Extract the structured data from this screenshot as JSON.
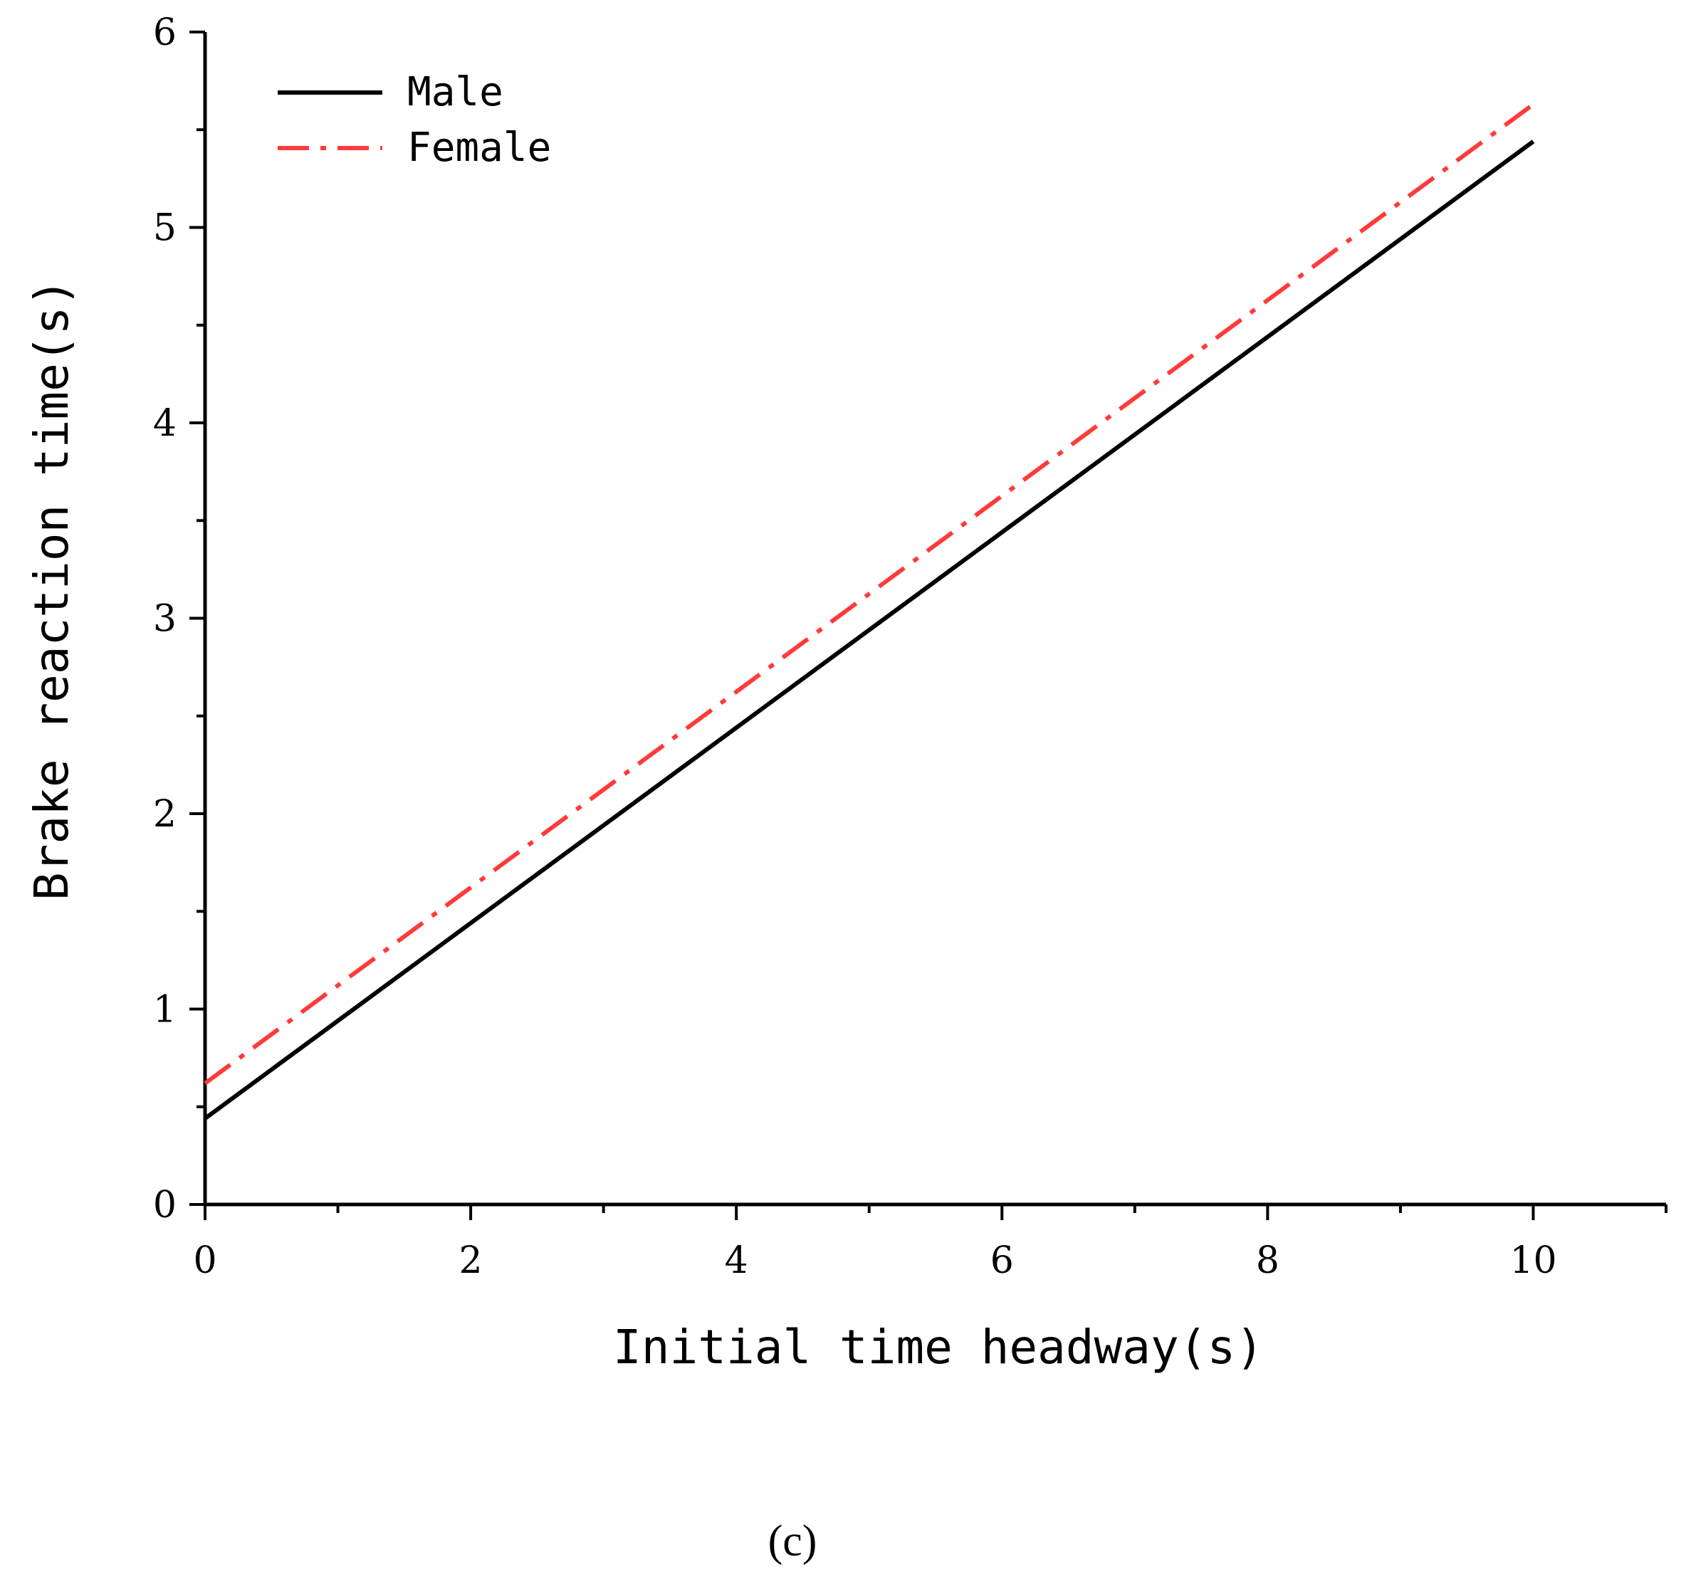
{
  "chart_data": {
    "type": "line",
    "xlabel": "Initial time headway(s)",
    "ylabel": "Brake reaction time(s)",
    "xlim": [
      0,
      11
    ],
    "ylim": [
      0,
      6
    ],
    "x_ticks": [
      0,
      2,
      4,
      6,
      8,
      10
    ],
    "x_tick_labels": [
      "0",
      "2",
      "4",
      "6",
      "8",
      "10"
    ],
    "y_ticks": [
      0,
      1,
      2,
      3,
      4,
      5,
      6
    ],
    "y_tick_labels": [
      "0",
      "1",
      "2",
      "3",
      "4",
      "5",
      "6"
    ],
    "x_minor_ticks": [
      1,
      3,
      5,
      7,
      9,
      11
    ],
    "y_minor_ticks": [
      0.5,
      1.5,
      2.5,
      3.5,
      4.5,
      5.5
    ],
    "grid": false,
    "legend_position": "top-left",
    "series": [
      {
        "name": "Male",
        "color": "#000000",
        "dash": "solid",
        "x": [
          0,
          10
        ],
        "y": [
          0.44,
          5.44
        ]
      },
      {
        "name": "Female",
        "color": "#ff3b3b",
        "dash": "dash-dot",
        "x": [
          0,
          10
        ],
        "y": [
          0.62,
          5.63
        ]
      }
    ]
  },
  "panel_label": "(c)"
}
